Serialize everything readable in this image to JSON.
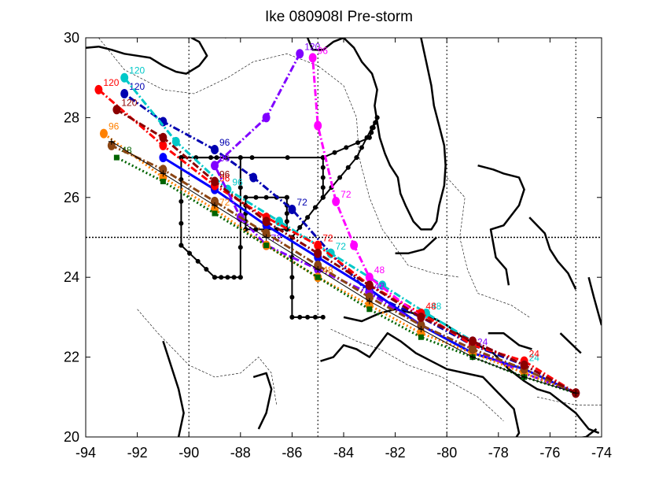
{
  "chart_data": {
    "type": "line",
    "title": "Ike 080908I Pre-storm",
    "xlabel": "",
    "ylabel": "",
    "xlim": [
      -94,
      -74
    ],
    "ylim": [
      20,
      30
    ],
    "xticks": [
      "-94",
      "-92",
      "-90",
      "-88",
      "-86",
      "-84",
      "-82",
      "-80",
      "-78",
      "-76",
      "-74"
    ],
    "yticks": [
      "20",
      "22",
      "24",
      "26",
      "28",
      "30"
    ],
    "grid": "dotted lines at x = -90, -85, -80, -75 and y = 25",
    "legend": "none",
    "coastline_color": "#000000",
    "series": [
      {
        "color": "#0000b0",
        "style": "dash-dot",
        "marker": "circle",
        "labels": [
          "120",
          "96",
          "72"
        ],
        "x": [
          -75.0,
          -77.0,
          -79.0,
          -81.0,
          -83.0,
          -84.5,
          -86.0,
          -87.5,
          -89.0,
          -91.0,
          -92.5
        ],
        "y": [
          21.1,
          21.8,
          22.3,
          23.0,
          23.6,
          24.6,
          25.7,
          26.5,
          27.2,
          27.9,
          28.6
        ]
      },
      {
        "color": "#0000ff",
        "style": "solid",
        "marker": "circle",
        "labels": [],
        "x": [
          -75.0,
          -77.0,
          -79.0,
          -81.0,
          -83.0,
          -85.0,
          -87.0,
          -89.0,
          -91.0
        ],
        "y": [
          21.1,
          21.7,
          22.1,
          22.8,
          23.7,
          24.5,
          25.3,
          26.2,
          27.0
        ]
      },
      {
        "color": "#00c8c8",
        "style": "dash-dot",
        "marker": "circle",
        "labels": [
          "120",
          "96",
          "72",
          "48",
          "24"
        ],
        "x": [
          -75.0,
          -77.0,
          -79.0,
          -80.8,
          -82.5,
          -84.5,
          -86.5,
          -88.5,
          -90.5,
          -92.5
        ],
        "y": [
          21.1,
          21.8,
          22.4,
          23.1,
          23.8,
          24.6,
          25.4,
          26.2,
          27.4,
          29.0
        ]
      },
      {
        "color": "#ff0000",
        "style": "dash-dot",
        "marker": "circle",
        "labels": [
          "120",
          "96",
          "72",
          "48",
          "24"
        ],
        "x": [
          -75.0,
          -77.0,
          -79.0,
          -81.0,
          -83.0,
          -85.0,
          -87.0,
          -89.0,
          -91.0,
          -93.5
        ],
        "y": [
          21.1,
          21.9,
          22.3,
          23.1,
          23.8,
          24.8,
          25.5,
          26.3,
          27.3,
          28.7
        ]
      },
      {
        "color": "#8000ff",
        "style": "dash-dot",
        "marker": "circle",
        "labels": [
          "120",
          "96",
          "72",
          "48",
          "24"
        ],
        "x": [
          -75.0,
          -77.0,
          -79.0,
          -81.0,
          -83.0,
          -85.0,
          -87.0,
          -88.0,
          -89.0,
          -87.0,
          -85.7
        ],
        "y": [
          21.1,
          21.6,
          22.2,
          22.8,
          23.6,
          24.2,
          24.8,
          25.5,
          26.8,
          28.0,
          29.6
        ]
      },
      {
        "color": "#ff00ff",
        "style": "dash-dot",
        "marker": "circle",
        "labels": [
          "96",
          "72",
          "48"
        ],
        "x": [
          -75.0,
          -77.0,
          -79.0,
          -81.0,
          -83.0,
          -83.6,
          -84.3,
          -85.0,
          -85.2
        ],
        "y": [
          21.1,
          21.8,
          22.4,
          23.0,
          24.0,
          24.8,
          25.9,
          27.8,
          29.5
        ]
      },
      {
        "color": "#ff8000",
        "style": "dotted",
        "marker": "circle",
        "labels": [
          "96",
          "72",
          "48"
        ],
        "x": [
          -75.0,
          -77.0,
          -79.0,
          -81.0,
          -83.0,
          -85.0,
          -87.0,
          -89.0,
          -91.0,
          -93.3
        ],
        "y": [
          21.1,
          21.6,
          22.1,
          22.6,
          23.3,
          24.0,
          24.8,
          25.7,
          26.5,
          27.6
        ]
      },
      {
        "color": "#006400",
        "style": "dotted",
        "marker": "square",
        "labels": [
          "48"
        ],
        "x": [
          -75.0,
          -77.0,
          -79.0,
          -81.0,
          -83.0,
          -85.0,
          -87.0,
          -89.0,
          -91.0,
          -92.8
        ],
        "y": [
          21.1,
          21.5,
          22.0,
          22.5,
          23.2,
          24.0,
          24.8,
          25.6,
          26.4,
          27.0
        ]
      },
      {
        "color": "#8b4513",
        "style": "dash-dot",
        "marker": "circle",
        "labels": [],
        "x": [
          -75.0,
          -77.0,
          -79.0,
          -81.0,
          -83.0,
          -85.0,
          -87.0,
          -89.0,
          -91.0,
          -93.0
        ],
        "y": [
          21.1,
          21.7,
          22.2,
          22.8,
          23.5,
          24.3,
          25.1,
          25.9,
          26.7,
          27.3
        ]
      },
      {
        "color": "#8b0000",
        "style": "dash-dot",
        "marker": "circle",
        "labels": [
          "120",
          "96"
        ],
        "x": [
          -75.0,
          -77.0,
          -79.0,
          -81.0,
          -83.0,
          -85.0,
          -87.0,
          -89.0,
          -91.0,
          -92.8
        ],
        "y": [
          21.1,
          21.8,
          22.4,
          23.0,
          23.8,
          24.6,
          25.4,
          26.4,
          27.5,
          28.2
        ]
      },
      {
        "color": "#000000",
        "style": "solid-thin",
        "marker": "plus",
        "labels": [],
        "x": [
          -75.0,
          -77.0,
          -79.0,
          -81.0,
          -83.0,
          -85.0,
          -87.0,
          -89.0,
          -91.0,
          -93.0
        ],
        "y": [
          21.1,
          21.5,
          22.0,
          22.7,
          23.4,
          24.2,
          25.0,
          25.8,
          26.6,
          27.4
        ]
      }
    ],
    "flight_tracks": {
      "color": "#000000",
      "marker": "circle",
      "paths": [
        {
          "x": [
            -90.3,
            -90.3,
            -89.0,
            -88.0,
            -88.0,
            -90.3
          ],
          "y": [
            27.0,
            24.8,
            24.0,
            24.0,
            27.0,
            27.0
          ]
        },
        {
          "x": [
            -87.8,
            -86.2,
            -86.2,
            -87.8,
            -87.8
          ],
          "y": [
            26.0,
            26.0,
            25.2,
            25.2,
            26.0
          ]
        },
        {
          "x": [
            -90.3,
            -84.8,
            -84.8,
            -86.0,
            -86.0,
            -84.8
          ],
          "y": [
            27.0,
            27.0,
            26.0,
            25.0,
            23.0,
            23.0
          ]
        },
        {
          "x": [
            -84.8,
            -83.0,
            -82.7
          ],
          "y": [
            27.0,
            27.5,
            28.0
          ]
        },
        {
          "x": [
            -84.8,
            -83.5,
            -82.7
          ],
          "y": [
            26.0,
            27.0,
            28.0
          ]
        }
      ]
    }
  }
}
